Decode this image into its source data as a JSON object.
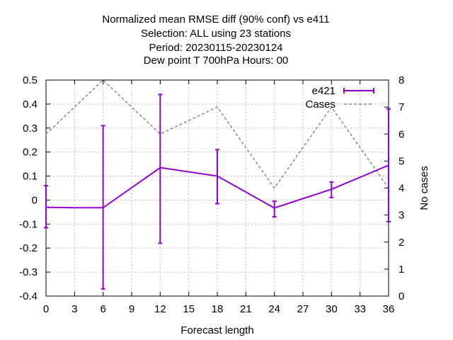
{
  "chart_data": {
    "type": "line",
    "title_lines": [
      "Normalized mean RMSE diff (90% conf) vs e411",
      "Selection: ALL using    23 stations",
      "Period: 20230115-20230124",
      "Dew point T 700hPa   Hours:  00"
    ],
    "xlabel": "Forecast length",
    "y2label": "No cases",
    "xlim": [
      0,
      36
    ],
    "ylim": [
      -0.4,
      0.5
    ],
    "y2lim": [
      0,
      8
    ],
    "x_ticks": [
      "0",
      "3",
      "6",
      "9",
      "12",
      "15",
      "18",
      "21",
      "24",
      "27",
      "30",
      "33",
      "36"
    ],
    "y_ticks": [
      "0.5",
      "0.4",
      "0.3",
      "0.2",
      "0.1",
      "0",
      "-0.1",
      "-0.2",
      "-0.3",
      "-0.4"
    ],
    "y2_ticks": [
      "8",
      "7",
      "6",
      "5",
      "4",
      "3",
      "2",
      "1",
      "0"
    ],
    "grid": true,
    "legend_position": "top-right",
    "series": [
      {
        "name": "e421",
        "axis": "y1",
        "color": "#9400d3",
        "x": [
          0,
          3,
          6,
          12,
          18,
          24,
          30,
          36
        ],
        "y": [
          -0.03,
          -0.032,
          -0.032,
          0.135,
          0.1,
          -0.033,
          0.045,
          0.145
        ],
        "err_low": [
          -0.115,
          null,
          -0.37,
          -0.18,
          -0.015,
          -0.07,
          0.01,
          -0.09
        ],
        "err_high": [
          0.06,
          null,
          0.31,
          0.44,
          0.21,
          -0.005,
          0.075,
          0.38
        ]
      },
      {
        "name": "Cases",
        "axis": "y2",
        "color": "#888888",
        "x": [
          0,
          6,
          12,
          18,
          24,
          30,
          36
        ],
        "y": [
          6,
          8,
          6,
          7,
          4,
          7,
          4
        ]
      }
    ]
  }
}
